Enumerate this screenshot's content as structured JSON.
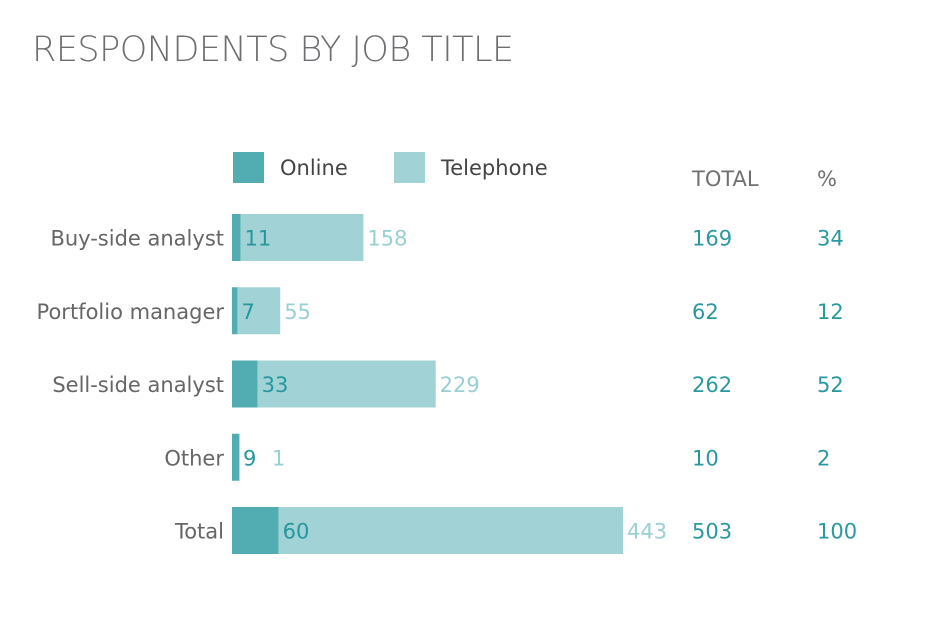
{
  "title": "RESPONDENTS BY JOB TITLE",
  "colors": {
    "online": "#52adb3",
    "telephone": "#a1d2d5",
    "online_text": "#26979e",
    "telephone_text": "#9acfd3",
    "category_text": "#666666",
    "header_text": "#707070",
    "value_text": "#2a999f",
    "title_text": "#6d6e71"
  },
  "table_headers": {
    "total": "TOTAL",
    "percent": "%"
  },
  "chart_data": {
    "type": "bar",
    "orientation": "horizontal",
    "stacked": true,
    "title": "RESPONDENTS BY JOB TITLE",
    "categories": [
      "Buy-side analyst",
      "Portfolio manager",
      "Sell-side analyst",
      "Other",
      "Total"
    ],
    "series": [
      {
        "name": "Online",
        "values": [
          11,
          7,
          33,
          9,
          60
        ]
      },
      {
        "name": "Telephone",
        "values": [
          158,
          55,
          229,
          1,
          443
        ]
      }
    ],
    "totals": [
      169,
      62,
      262,
      10,
      503
    ],
    "percent": [
      34,
      12,
      52,
      2,
      100
    ],
    "xlim": [
      0,
      503
    ],
    "legend": "top",
    "grid": false,
    "axes_visible": false
  }
}
